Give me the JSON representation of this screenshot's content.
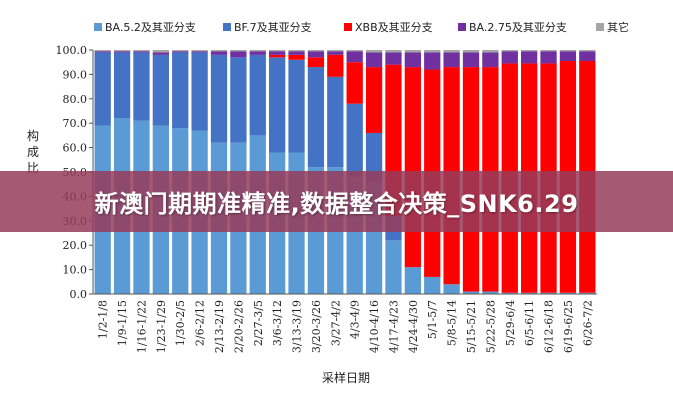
{
  "banner": {
    "text": "新澳门期期准精准,数据整合决策_SNK6.29"
  },
  "chart_data": {
    "type": "bar",
    "stacked": true,
    "xlabel": "采样日期",
    "ylabel": "构成比",
    "ylim": [
      0,
      100
    ],
    "yticks": [
      "0.0",
      "10.0",
      "20.0",
      "30.0",
      "40.0",
      "50.0",
      "60.0",
      "70.0",
      "80.0",
      "90.0",
      "100.0"
    ],
    "legend_position": "top",
    "grid": false,
    "categories": [
      "1/2-1/8",
      "1/9-1/15",
      "1/16-1/22",
      "1/23-1/29",
      "1/30-2/5",
      "2/6-2/12",
      "2/13-2/19",
      "2/20-2/26",
      "2/27-3/5",
      "3/6-3/12",
      "3/13-3/19",
      "3/20-3/26",
      "3/27-4/2",
      "4/3-4/9",
      "4/10-4/16",
      "4/17-4/23",
      "4/24-4/30",
      "5/1-5/7",
      "5/8-5/14",
      "5/15-5/21",
      "5/22-5/28",
      "5/29-6/4",
      "6/5-6/11",
      "6/12-6/18",
      "6/19-6/25",
      "6/26-7/2"
    ],
    "series": [
      {
        "name": "BA.5.2及其亚分支",
        "color": "#5b9bd5",
        "values": [
          69,
          72,
          71,
          69,
          68,
          67,
          62,
          62,
          65,
          58,
          58,
          52,
          52,
          48,
          46,
          22,
          11,
          7,
          4,
          1,
          1,
          0.5,
          0.5,
          0.5,
          0.5,
          0.5
        ]
      },
      {
        "name": "BF.7及其亚分支",
        "color": "#4472c4",
        "values": [
          30,
          27,
          28,
          29,
          31,
          32,
          36,
          35,
          33,
          39,
          38,
          41,
          37,
          30,
          20,
          10,
          0,
          0,
          0,
          0,
          0,
          0,
          0,
          0,
          0,
          0
        ]
      },
      {
        "name": "XBB及其亚分支",
        "color": "#ff0000",
        "values": [
          0,
          0,
          0,
          0,
          0,
          0,
          0,
          0,
          0,
          1,
          2,
          4,
          9,
          17,
          27,
          62,
          82,
          85,
          89,
          92,
          92,
          94,
          94,
          94,
          95,
          95
        ]
      },
      {
        "name": "BA.2.75及其亚分支",
        "color": "#7030a0",
        "values": [
          0.5,
          0.5,
          0.5,
          1,
          0.5,
          0.5,
          1.5,
          2.5,
          1.5,
          1.5,
          1.5,
          2.5,
          1.5,
          4.5,
          6,
          5,
          6,
          7,
          6,
          6,
          6,
          5,
          5,
          5,
          4,
          4
        ]
      },
      {
        "name": "其它",
        "color": "#a5a5a5",
        "values": [
          0.5,
          0.5,
          0.5,
          1,
          0.5,
          0.5,
          0.5,
          0.5,
          0.5,
          0.5,
          0.5,
          0.5,
          0.5,
          0.5,
          1,
          1,
          1,
          1,
          1,
          1,
          1,
          0.5,
          0.5,
          0.5,
          0.5,
          0.5
        ]
      }
    ]
  }
}
